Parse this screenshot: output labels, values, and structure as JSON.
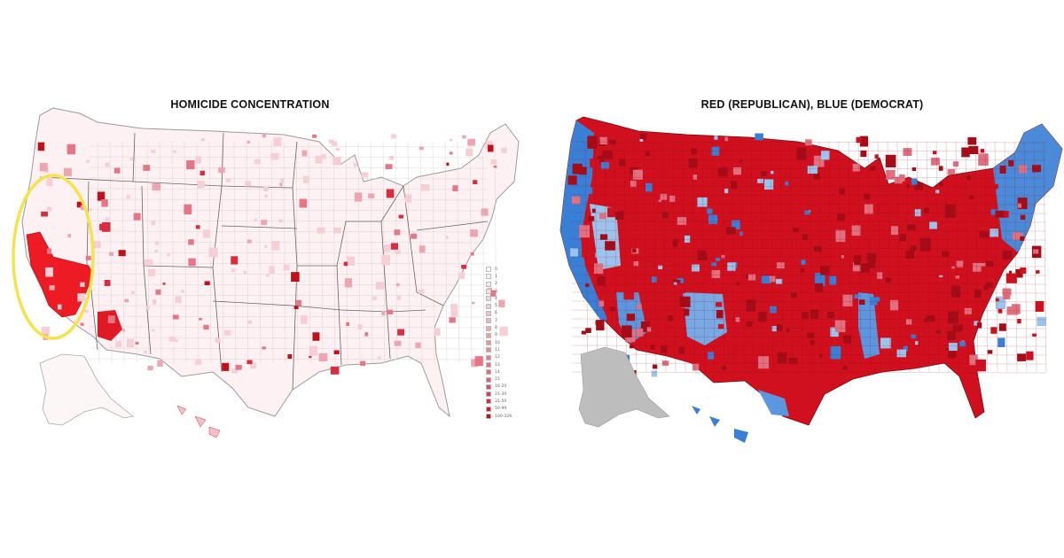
{
  "left_map": {
    "title": "HOMICIDE CONCENTRATION",
    "base_color": "#fbe9ec",
    "highlight_color": "#e8101c",
    "dark_color": "#c2121c",
    "circle_color": "#f5e84a",
    "legend": [
      {
        "label": "0",
        "color": "#ffffff"
      },
      {
        "label": "1",
        "color": "#fdf1f3"
      },
      {
        "label": "2",
        "color": "#fbe6ea"
      },
      {
        "label": "3",
        "color": "#f9dde2"
      },
      {
        "label": "4",
        "color": "#f7d3da"
      },
      {
        "label": "5",
        "color": "#f5c9d1"
      },
      {
        "label": "6",
        "color": "#f3bfc8"
      },
      {
        "label": "7",
        "color": "#f0b4bf"
      },
      {
        "label": "8",
        "color": "#eeaab6"
      },
      {
        "label": "9",
        "color": "#ec9fad"
      },
      {
        "label": "10",
        "color": "#e995a3"
      },
      {
        "label": "11",
        "color": "#e68a9a"
      },
      {
        "label": "12",
        "color": "#e48090"
      },
      {
        "label": "13",
        "color": "#e17586"
      },
      {
        "label": "14",
        "color": "#de6b7c"
      },
      {
        "label": "15",
        "color": "#db6072"
      },
      {
        "label": "16-20",
        "color": "#d85065"
      },
      {
        "label": "21-30",
        "color": "#d53f55"
      },
      {
        "label": "31-50",
        "color": "#d12e40"
      },
      {
        "label": "50-99",
        "color": "#cc1e2c"
      },
      {
        "label": "100-326",
        "color": "#c0101a"
      }
    ]
  },
  "right_map": {
    "title": "RED (REPUBLICAN), BLUE (DEMOCRAT)",
    "republican_color": "#d0101e",
    "light_republican_color": "#e0707f",
    "democrat_color": "#3a7fd6",
    "light_democrat_color": "#9cc3ec",
    "alaska_color": "#bdbdbd"
  }
}
